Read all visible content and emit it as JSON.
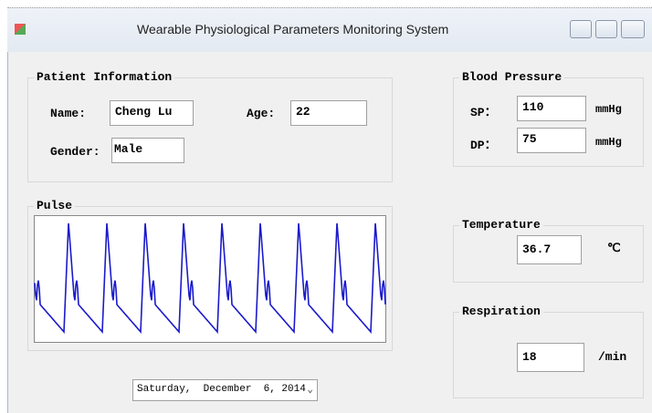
{
  "window": {
    "title": "Wearable Physiological Parameters Monitoring System"
  },
  "patient_information": {
    "title": "Patient Information",
    "name": {
      "label": "Name:",
      "value": "Cheng Lu"
    },
    "age": {
      "label": "Age:",
      "value": "22"
    },
    "gender": {
      "label": "Gender:",
      "value": "Male"
    }
  },
  "blood_pressure": {
    "title": "Blood Pressure",
    "sp": {
      "label": "SP：",
      "value": "110",
      "unit": "mmHg"
    },
    "dp": {
      "label": "DP：",
      "value": "75",
      "unit": "mmHg"
    }
  },
  "pulse": {
    "title": "Pulse"
  },
  "temperature": {
    "title": "Temperature",
    "value": "36.7",
    "unit": "℃"
  },
  "respiration": {
    "title": "Respiration",
    "value": "18",
    "unit": "/min"
  },
  "date": "Saturday,  December  6, 2014"
}
